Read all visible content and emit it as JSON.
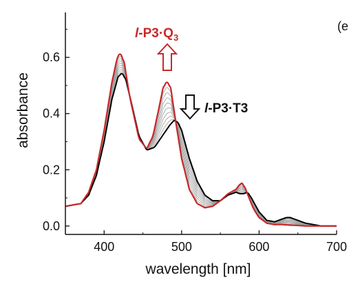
{
  "chart_data": {
    "type": "line",
    "xlabel": "wavelength [nm]",
    "ylabel": "absorbance",
    "xlim": [
      350,
      700
    ],
    "ylim": [
      -0.03,
      0.76
    ],
    "x_ticks": [
      400,
      500,
      600,
      700
    ],
    "x_tick_labels": [
      "400",
      "500",
      "600",
      "700"
    ],
    "y_ticks": [
      0.0,
      0.2,
      0.4,
      0.6
    ],
    "y_tick_labels": [
      "0.0",
      "0.2",
      "0.4",
      "0.6"
    ],
    "panel_label": "(e",
    "grid": false,
    "series": [
      {
        "name": "l-P3·T3",
        "color": "#000000",
        "x": [
          350,
          370,
          380,
          390,
          400,
          410,
          418,
          423,
          428,
          435,
          445,
          455,
          465,
          475,
          485,
          490,
          495,
          500,
          510,
          520,
          530,
          540,
          550,
          560,
          570,
          575,
          580,
          585,
          590,
          600,
          610,
          620,
          630,
          635,
          640,
          650,
          660,
          670,
          680,
          700
        ],
        "values": [
          0.07,
          0.08,
          0.11,
          0.18,
          0.3,
          0.45,
          0.53,
          0.545,
          0.52,
          0.44,
          0.32,
          0.27,
          0.28,
          0.32,
          0.36,
          0.375,
          0.37,
          0.34,
          0.24,
          0.16,
          0.11,
          0.09,
          0.09,
          0.11,
          0.12,
          0.115,
          0.115,
          0.12,
          0.1,
          0.05,
          0.02,
          0.015,
          0.025,
          0.03,
          0.03,
          0.02,
          0.01,
          0.005,
          0.0,
          0.0
        ]
      },
      {
        "name": "l-P3·Q3",
        "color": "#c8282a",
        "x": [
          350,
          370,
          380,
          390,
          400,
          410,
          417,
          421,
          426,
          433,
          445,
          455,
          463,
          470,
          476,
          481,
          486,
          493,
          500,
          510,
          520,
          530,
          540,
          550,
          560,
          570,
          575,
          578,
          582,
          587,
          593,
          600,
          610,
          620,
          630,
          640,
          650,
          660,
          680,
          700
        ],
        "values": [
          0.07,
          0.08,
          0.12,
          0.2,
          0.34,
          0.51,
          0.6,
          0.615,
          0.58,
          0.46,
          0.31,
          0.275,
          0.32,
          0.41,
          0.49,
          0.515,
          0.49,
          0.36,
          0.24,
          0.13,
          0.08,
          0.065,
          0.07,
          0.09,
          0.115,
          0.13,
          0.148,
          0.152,
          0.135,
          0.1,
          0.06,
          0.03,
          0.01,
          0.005,
          0.005,
          0.003,
          0.002,
          0.0,
          0.0,
          0.0
        ]
      }
    ],
    "annotations": [
      {
        "prefix": "l",
        "text": "-P3·Q",
        "subscript": "3",
        "color": "#c8282a",
        "arrow": "up"
      },
      {
        "prefix": "l",
        "text": "-P3·T3",
        "color": "#000000",
        "arrow": "down"
      }
    ]
  }
}
